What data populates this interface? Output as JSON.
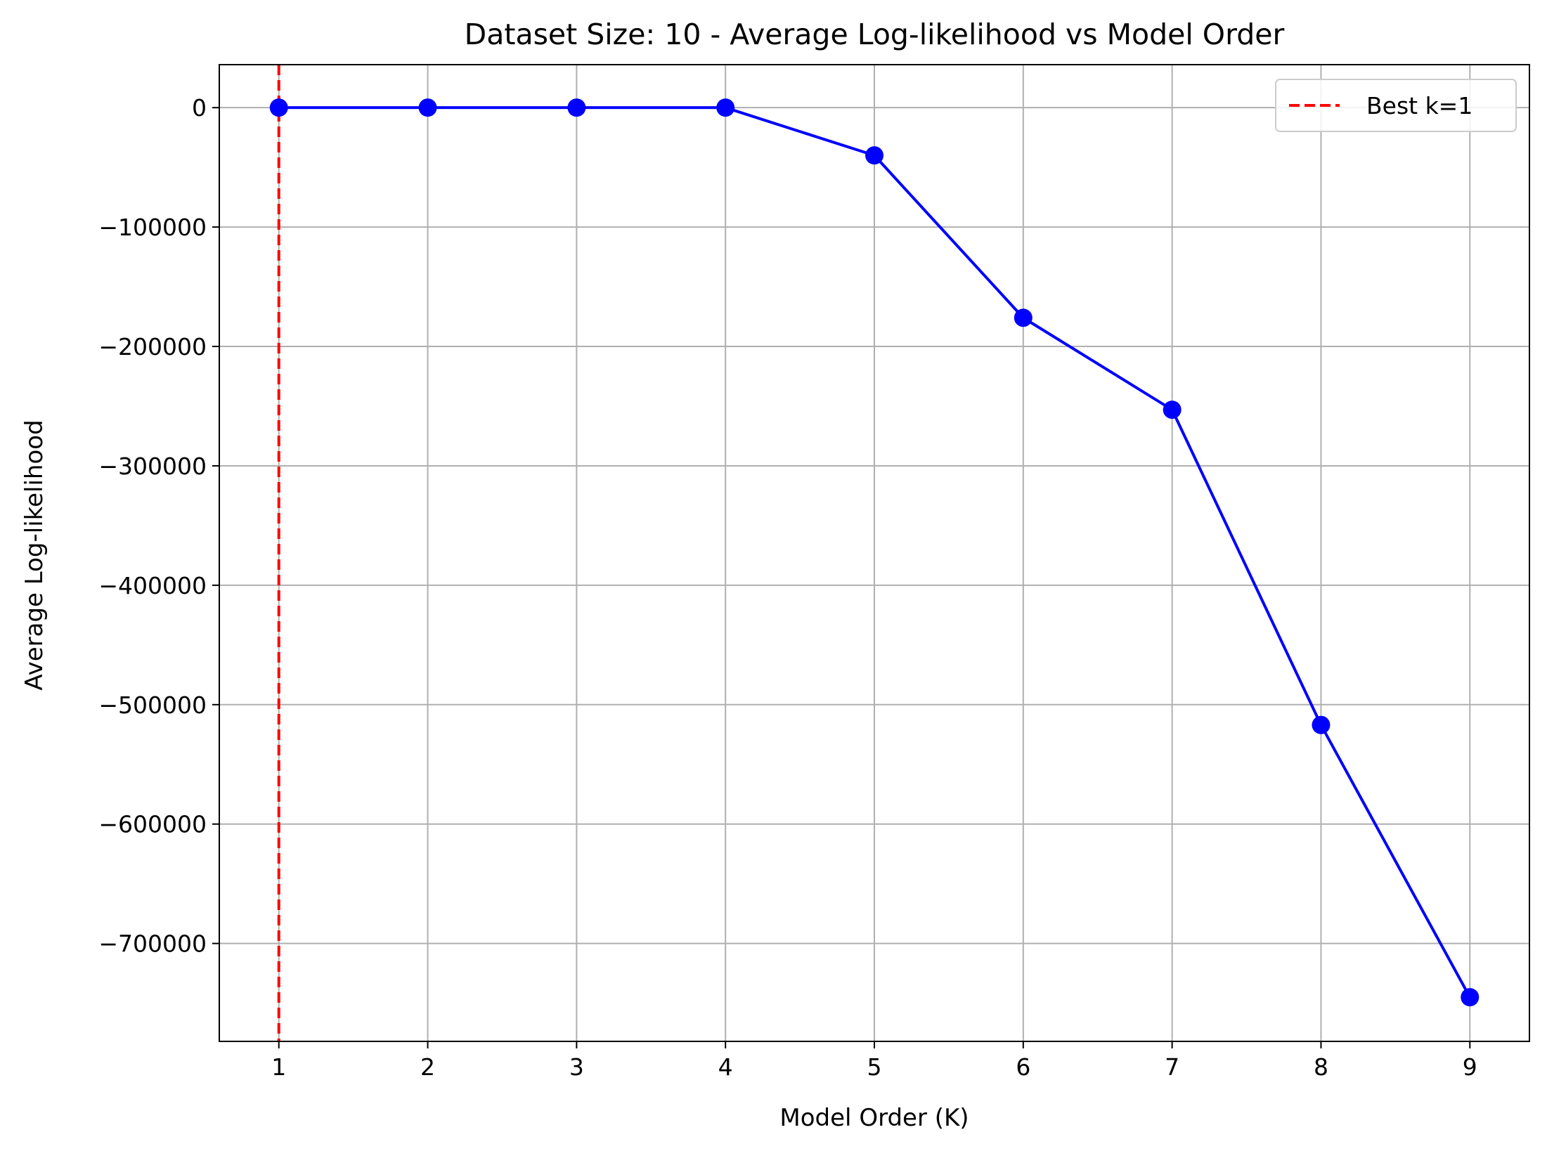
{
  "chart_data": {
    "type": "line",
    "title": "Dataset Size: 10 - Average Log-likelihood vs Model Order",
    "xlabel": "Model Order (K)",
    "ylabel": "Average Log-likelihood",
    "x": [
      1,
      2,
      3,
      4,
      5,
      6,
      7,
      8,
      9
    ],
    "series": [
      {
        "values": [
          0,
          0,
          0,
          0,
          -40000,
          -176000,
          -253000,
          -517000,
          -745000
        ],
        "color": "#0000ff",
        "marker": "circle"
      }
    ],
    "xlim": [
      0.6,
      9.4
    ],
    "ylim": [
      -782000,
      36000
    ],
    "xticks": [
      1,
      2,
      3,
      4,
      5,
      6,
      7,
      8,
      9
    ],
    "yticks": [
      0,
      -100000,
      -200000,
      -300000,
      -400000,
      -500000,
      -600000,
      -700000
    ],
    "ytick_labels": [
      "0",
      "−100000",
      "−200000",
      "−300000",
      "−400000",
      "−500000",
      "−600000",
      "−700000"
    ],
    "grid": true,
    "vline": {
      "x": 1,
      "color": "#ff0000",
      "style": "dashed"
    },
    "legend": {
      "position": "top-right",
      "entries": [
        {
          "label": "Best k=1",
          "color": "#ff0000",
          "style": "dashed"
        }
      ]
    }
  }
}
